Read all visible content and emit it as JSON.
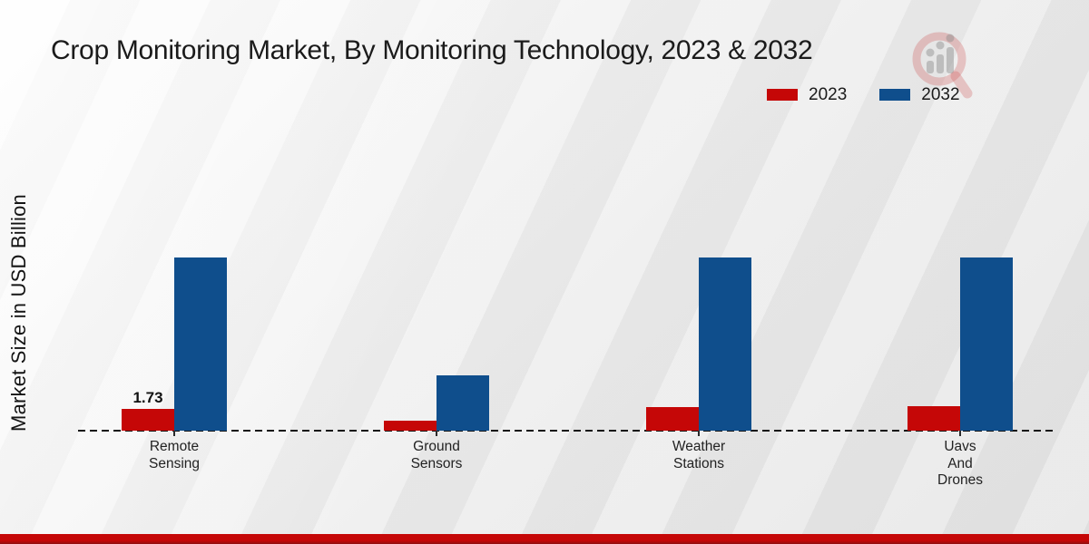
{
  "title": "Crop Monitoring Market, By Monitoring Technology, 2023 & 2032",
  "ylabel": "Market Size in USD Billion",
  "legend": {
    "items": [
      {
        "label": "2023",
        "color": "#c50707"
      },
      {
        "label": "2032",
        "color": "#0f4e8c"
      }
    ],
    "position": "top-right"
  },
  "watermark": {
    "name": "market-research-magnifier-logo"
  },
  "footer": {
    "color": "#c50707"
  },
  "chart_data": {
    "type": "bar",
    "title": "Crop Monitoring Market, By Monitoring Technology, 2023 & 2032",
    "categories": [
      "Remote Sensing",
      "Ground Sensors",
      "Weather Stations",
      "Uavs And Drones"
    ],
    "series": [
      {
        "name": "2023",
        "color": "#c50707",
        "values": [
          1.73,
          0.78,
          1.85,
          1.95
        ]
      },
      {
        "name": "2032",
        "color": "#0f4e8c",
        "values": [
          13.8,
          4.4,
          13.8,
          13.8
        ]
      }
    ],
    "value_labels": [
      {
        "series": "2023",
        "category_index": 0,
        "text": "1.73"
      }
    ],
    "xlabel": "",
    "ylabel": "Market Size in USD Billion",
    "ylim": [
      0,
      14.5
    ],
    "grid": false,
    "legend_position": "top-right",
    "axis_style": "dashed-baseline-only",
    "unit": "USD Billion"
  }
}
